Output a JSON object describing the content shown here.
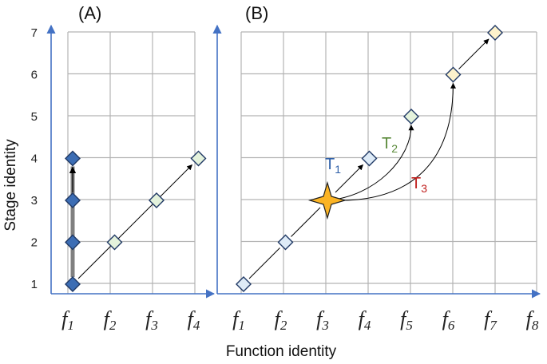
{
  "panels": {
    "a": {
      "label": "(A)",
      "x_ticks": [
        {
          "base": "f",
          "sub": "1"
        },
        {
          "base": "f",
          "sub": "2"
        },
        {
          "base": "f",
          "sub": "3"
        },
        {
          "base": "f",
          "sub": "4"
        }
      ],
      "y_ticks": [
        "1",
        "2",
        "3",
        "4",
        "5",
        "6",
        "7"
      ],
      "points": [
        {
          "x": 1,
          "y": 1,
          "color": "#3c6db4"
        },
        {
          "x": 1,
          "y": 2,
          "color": "#3c6db4"
        },
        {
          "x": 1,
          "y": 3,
          "color": "#3c6db4"
        },
        {
          "x": 1,
          "y": 4,
          "color": "#3c6db4"
        },
        {
          "x": 2,
          "y": 2,
          "color": "#e4f2dc"
        },
        {
          "x": 3,
          "y": 3,
          "color": "#e4f2dc"
        },
        {
          "x": 4,
          "y": 4,
          "color": "#e4f2dc"
        }
      ]
    },
    "b": {
      "label": "(B)",
      "x_ticks": [
        {
          "base": "f",
          "sub": "1"
        },
        {
          "base": "f",
          "sub": "2"
        },
        {
          "base": "f",
          "sub": "3"
        },
        {
          "base": "f",
          "sub": "4"
        },
        {
          "base": "f",
          "sub": "5"
        },
        {
          "base": "f",
          "sub": "6"
        },
        {
          "base": "f",
          "sub": "7"
        },
        {
          "base": "f",
          "sub": "8"
        }
      ],
      "points": [
        {
          "x": 1,
          "y": 1,
          "color": "#deebf7"
        },
        {
          "x": 2,
          "y": 2,
          "color": "#deebf7"
        },
        {
          "x": 4,
          "y": 4,
          "color": "#deebf7"
        },
        {
          "x": 5,
          "y": 5,
          "color": "#e4f2dc"
        },
        {
          "x": 6,
          "y": 6,
          "color": "#fdf2cc"
        },
        {
          "x": 7,
          "y": 7,
          "color": "#fdf2cc"
        }
      ],
      "star": {
        "x": 3,
        "y": 3,
        "color": "#fbb425"
      },
      "trajectories": [
        {
          "base": "T",
          "sub": "1",
          "color": "#2e5fa8",
          "to": {
            "x": 4,
            "y": 4
          }
        },
        {
          "base": "T",
          "sub": "2",
          "color": "#5a8a3a",
          "to": {
            "x": 5,
            "y": 5
          }
        },
        {
          "base": "T",
          "sub": "3",
          "color": "#c0201e",
          "to": {
            "x": 6,
            "y": 6
          }
        }
      ]
    }
  },
  "axis_titles": {
    "x": "Function identity",
    "y": "Stage identity"
  },
  "colors": {
    "axis": "#4472c4",
    "grid": "#b3b3b3",
    "diamond_stroke": "#1f3864"
  }
}
